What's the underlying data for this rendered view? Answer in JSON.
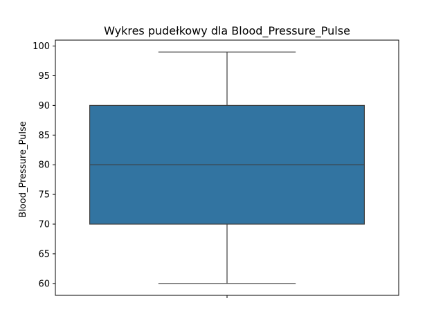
{
  "chart_data": {
    "type": "box",
    "title": "Wykres pudełkowy dla Blood_Pressure_Pulse",
    "xlabel": "",
    "ylabel": "Blood_Pressure_Pulse",
    "ylim": [
      58,
      101
    ],
    "yticks": [
      60,
      65,
      70,
      75,
      80,
      85,
      90,
      95,
      100
    ],
    "grid": false,
    "series": [
      {
        "whisker_low": 60,
        "q1": 70,
        "median": 80,
        "q3": 90,
        "whisker_high": 99,
        "fill": "#3274a1",
        "line": "#3d3d3d"
      }
    ]
  }
}
